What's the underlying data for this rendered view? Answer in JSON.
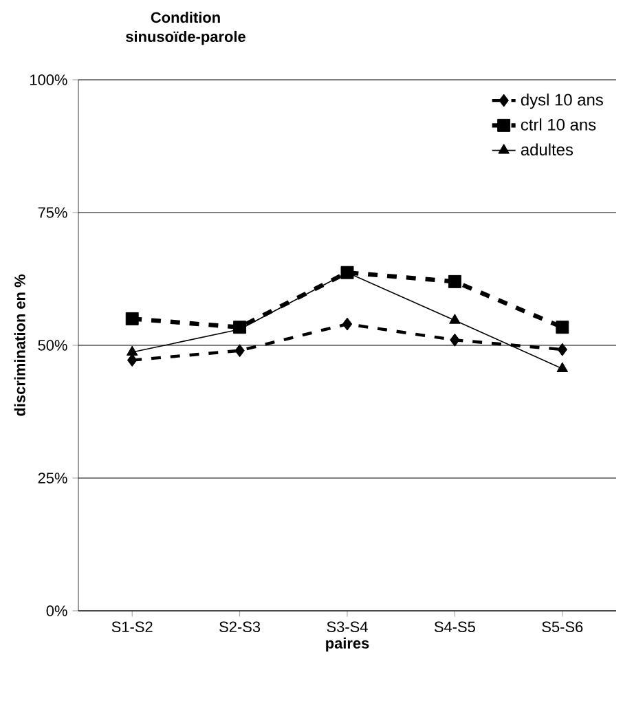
{
  "chart_data": {
    "type": "line",
    "title": "Condition sinusoïde-parole",
    "xlabel": "paires",
    "ylabel": "discrimination en %",
    "categories": [
      "S1-S2",
      "S2-S3",
      "S3-S4",
      "S4-S5",
      "S5-S6"
    ],
    "ylim": [
      0,
      100
    ],
    "yticks": [
      {
        "value": 0,
        "label": "0%"
      },
      {
        "value": 25,
        "label": "25%"
      },
      {
        "value": 50,
        "label": "50%"
      },
      {
        "value": 75,
        "label": "75%"
      },
      {
        "value": 100,
        "label": "100%"
      }
    ],
    "grid": "y",
    "legend": "top right",
    "series": [
      {
        "name": "dysl 10 ans",
        "color": "#000000",
        "marker": "diamond",
        "line_style": "dashed",
        "values": [
          47.2,
          49,
          54,
          51,
          49.2
        ]
      },
      {
        "name": "ctrl 10 ans",
        "color": "#000000",
        "marker": "square",
        "line_style": "dashed",
        "values": [
          55,
          53.4,
          63.7,
          62,
          53.4
        ]
      },
      {
        "name": "adultes",
        "color": "#000000",
        "marker": "triangle",
        "line_style": "solid",
        "values": [
          48.7,
          53,
          63.7,
          54.7,
          45.6
        ]
      }
    ]
  }
}
